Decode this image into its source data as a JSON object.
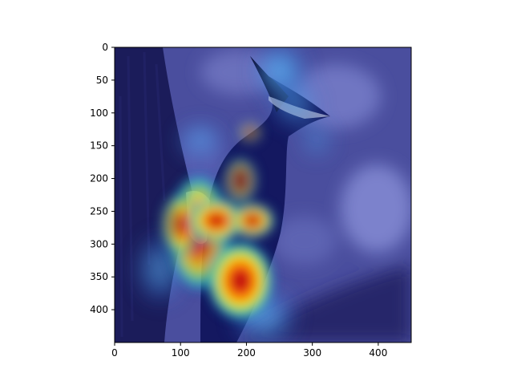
{
  "chart_data": {
    "type": "heatmap",
    "title": "",
    "xlabel": "",
    "ylabel": "",
    "xlim": [
      0,
      450
    ],
    "ylim": [
      450,
      0
    ],
    "y_inverted": true,
    "x_ticks": [
      0,
      100,
      200,
      300,
      400
    ],
    "y_ticks": [
      0,
      50,
      100,
      150,
      200,
      250,
      300,
      350,
      400
    ],
    "grid": false,
    "colormap": "jet",
    "overlay_alpha": 0.5,
    "background": "photo of a woodpecker on a tree trunk",
    "hotspots": [
      {
        "x": 183,
        "y": 352,
        "intensity": 1.0
      },
      {
        "x": 160,
        "y": 270,
        "intensity": 0.95
      },
      {
        "x": 205,
        "y": 272,
        "intensity": 0.9
      },
      {
        "x": 185,
        "y": 240,
        "intensity": 0.55
      },
      {
        "x": 145,
        "y": 330,
        "intensity": 0.6
      },
      {
        "x": 120,
        "y": 290,
        "intensity": 0.55
      },
      {
        "x": 110,
        "y": 230,
        "intensity": 0.45
      },
      {
        "x": 200,
        "y": 205,
        "intensity": 0.55
      },
      {
        "x": 215,
        "y": 145,
        "intensity": 0.35
      },
      {
        "x": 265,
        "y": 25,
        "intensity": 0.4
      },
      {
        "x": 245,
        "y": 105,
        "intensity": 0.3
      },
      {
        "x": 230,
        "y": 395,
        "intensity": 0.45
      },
      {
        "x": 75,
        "y": 330,
        "intensity": 0.35
      },
      {
        "x": 60,
        "y": 255,
        "intensity": 0.25
      }
    ]
  }
}
